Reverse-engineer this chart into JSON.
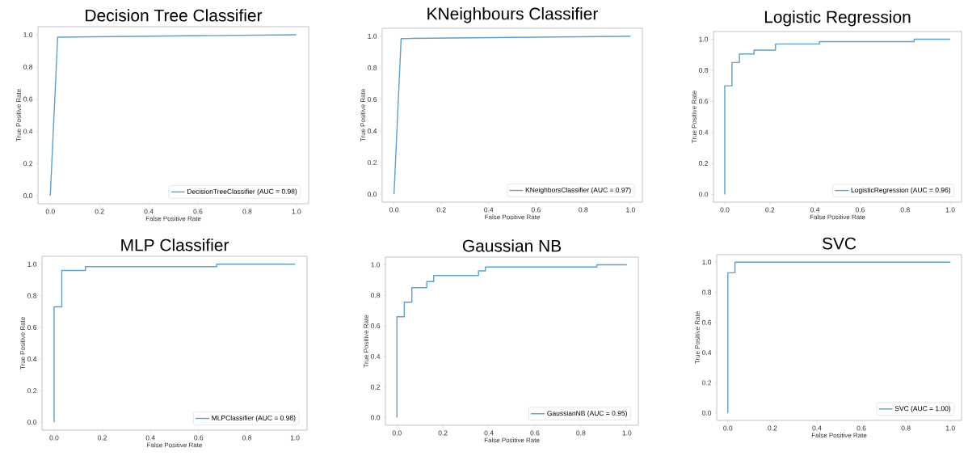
{
  "chart_data": [
    {
      "type": "line",
      "title": "Decision Tree Classifier",
      "xlabel": "False Positive Rate",
      "ylabel": "True Positive Rate",
      "xlim": [
        -0.05,
        1.05
      ],
      "ylim": [
        -0.05,
        1.05
      ],
      "xticks": [
        {
          "value": 0,
          "label": "0.0"
        },
        {
          "value": 0.2,
          "label": "0.2"
        },
        {
          "value": 0.4,
          "label": "0.4"
        },
        {
          "value": 0.6,
          "label": "0.6"
        },
        {
          "value": 0.8,
          "label": "0.8"
        },
        {
          "value": 1,
          "label": "1.0"
        }
      ],
      "yticks": [
        {
          "value": 0,
          "label": "0.0"
        },
        {
          "value": 0.2,
          "label": "0.2"
        },
        {
          "value": 0.4,
          "label": "0.4"
        },
        {
          "value": 0.6,
          "label": "0.6"
        },
        {
          "value": 0.8,
          "label": "0.8"
        },
        {
          "value": 1,
          "label": "1.0"
        }
      ],
      "legend": "bottom right",
      "series": [
        {
          "name": "DecisionTreeClassifier (AUC = 0.98)",
          "color": "#5f9fc8",
          "x": [
            0,
            0.03,
            1
          ],
          "values": [
            0,
            0.985,
            1
          ]
        }
      ]
    },
    {
      "type": "line",
      "title": "KNeighbours Classifier",
      "xlabel": "False Positive Rate",
      "ylabel": "True Positive Rate",
      "xlim": [
        -0.05,
        1.05
      ],
      "ylim": [
        -0.05,
        1.05
      ],
      "xticks": [
        {
          "value": 0,
          "label": "0.0"
        },
        {
          "value": 0.2,
          "label": "0.2"
        },
        {
          "value": 0.4,
          "label": "0.4"
        },
        {
          "value": 0.6,
          "label": "0.6"
        },
        {
          "value": 0.8,
          "label": "0.8"
        },
        {
          "value": 1,
          "label": "1.0"
        }
      ],
      "yticks": [
        {
          "value": 0,
          "label": "0.0"
        },
        {
          "value": 0.2,
          "label": "0.2"
        },
        {
          "value": 0.4,
          "label": "0.4"
        },
        {
          "value": 0.6,
          "label": "0.6"
        },
        {
          "value": 0.8,
          "label": "0.8"
        },
        {
          "value": 1,
          "label": "1.0"
        }
      ],
      "legend": "bottom right",
      "series": [
        {
          "name": "KNeighborsClassifier (AUC = 0.97)",
          "color": "#5f9fc8",
          "x": [
            0,
            0.03,
            1
          ],
          "values": [
            0,
            0.985,
            1
          ]
        }
      ]
    },
    {
      "type": "line",
      "title": "Logistic Regression",
      "xlabel": "False Positive Rate",
      "ylabel": "True Positive Rate",
      "xlim": [
        -0.05,
        1.05
      ],
      "ylim": [
        -0.05,
        1.05
      ],
      "xticks": [
        {
          "value": 0,
          "label": "0.0"
        },
        {
          "value": 0.2,
          "label": "0.2"
        },
        {
          "value": 0.4,
          "label": "0.4"
        },
        {
          "value": 0.6,
          "label": "0.6"
        },
        {
          "value": 0.8,
          "label": "0.8"
        },
        {
          "value": 1,
          "label": "1.0"
        }
      ],
      "yticks": [
        {
          "value": 0,
          "label": "0.0"
        },
        {
          "value": 0.2,
          "label": "0.2"
        },
        {
          "value": 0.4,
          "label": "0.4"
        },
        {
          "value": 0.6,
          "label": "0.6"
        },
        {
          "value": 0.8,
          "label": "0.8"
        },
        {
          "value": 1,
          "label": "1.0"
        }
      ],
      "legend": "bottom right",
      "series": [
        {
          "name": "LogisticRegression (AUC = 0.96)",
          "color": "#5f9fc8",
          "x": [
            0,
            0,
            0.032,
            0.032,
            0.065,
            0.065,
            0.13,
            0.13,
            0.225,
            0.225,
            0.42,
            0.42,
            0.84,
            0.84,
            1
          ],
          "values": [
            0,
            0.7,
            0.7,
            0.85,
            0.85,
            0.905,
            0.905,
            0.93,
            0.93,
            0.97,
            0.97,
            0.985,
            0.985,
            1,
            1
          ]
        }
      ]
    },
    {
      "type": "line",
      "title": "MLP Classifier",
      "xlabel": "False Positive Rate",
      "ylabel": "True Positive Rate",
      "xlim": [
        -0.05,
        1.05
      ],
      "ylim": [
        -0.05,
        1.05
      ],
      "xticks": [
        {
          "value": 0,
          "label": "0.0"
        },
        {
          "value": 0.2,
          "label": "0.2"
        },
        {
          "value": 0.4,
          "label": "0.4"
        },
        {
          "value": 0.6,
          "label": "0.6"
        },
        {
          "value": 0.8,
          "label": "0.8"
        },
        {
          "value": 1,
          "label": "1.0"
        }
      ],
      "yticks": [
        {
          "value": 0,
          "label": "0.0"
        },
        {
          "value": 0.2,
          "label": "0.2"
        },
        {
          "value": 0.4,
          "label": "0.4"
        },
        {
          "value": 0.6,
          "label": "0.6"
        },
        {
          "value": 0.8,
          "label": "0.8"
        },
        {
          "value": 1,
          "label": "1.0"
        }
      ],
      "legend": "bottom right",
      "series": [
        {
          "name": "MLPClassifier (AUC = 0.98)",
          "color": "#5f9fc8",
          "x": [
            0,
            0,
            0.032,
            0.032,
            0.13,
            0.13,
            0.675,
            0.675,
            1
          ],
          "values": [
            0,
            0.73,
            0.73,
            0.96,
            0.96,
            0.985,
            0.985,
            1,
            1
          ]
        }
      ]
    },
    {
      "type": "line",
      "title": "Gaussian NB",
      "xlabel": "False Positive Rate",
      "ylabel": "True Positive Rate",
      "xlim": [
        -0.05,
        1.05
      ],
      "ylim": [
        -0.05,
        1.05
      ],
      "xticks": [
        {
          "value": 0,
          "label": "0.0"
        },
        {
          "value": 0.2,
          "label": "0.2"
        },
        {
          "value": 0.4,
          "label": "0.4"
        },
        {
          "value": 0.6,
          "label": "0.6"
        },
        {
          "value": 0.8,
          "label": "0.8"
        },
        {
          "value": 1,
          "label": "1.0"
        }
      ],
      "yticks": [
        {
          "value": 0,
          "label": "0.0"
        },
        {
          "value": 0.2,
          "label": "0.2"
        },
        {
          "value": 0.4,
          "label": "0.4"
        },
        {
          "value": 0.6,
          "label": "0.6"
        },
        {
          "value": 0.8,
          "label": "0.8"
        },
        {
          "value": 1,
          "label": "1.0"
        }
      ],
      "legend": "bottom right",
      "series": [
        {
          "name": "GaussianNB (AUC = 0.95)",
          "color": "#5f9fc8",
          "x": [
            0,
            0,
            0.032,
            0.032,
            0.065,
            0.065,
            0.13,
            0.13,
            0.16,
            0.16,
            0.355,
            0.355,
            0.385,
            0.385,
            0.87,
            0.87,
            1
          ],
          "values": [
            0,
            0.66,
            0.66,
            0.755,
            0.755,
            0.85,
            0.85,
            0.89,
            0.89,
            0.93,
            0.93,
            0.96,
            0.96,
            0.985,
            0.985,
            1,
            1
          ]
        }
      ]
    },
    {
      "type": "line",
      "title": "SVC",
      "xlabel": "False Positive Rate",
      "ylabel": "True Positive Rate",
      "xlim": [
        -0.05,
        1.05
      ],
      "ylim": [
        -0.05,
        1.05
      ],
      "xticks": [
        {
          "value": 0,
          "label": "0.0"
        },
        {
          "value": 0.2,
          "label": "0.2"
        },
        {
          "value": 0.4,
          "label": "0.4"
        },
        {
          "value": 0.6,
          "label": "0.6"
        },
        {
          "value": 0.8,
          "label": "0.8"
        },
        {
          "value": 1,
          "label": "1.0"
        }
      ],
      "yticks": [
        {
          "value": 0,
          "label": "0.0"
        },
        {
          "value": 0.2,
          "label": "0.2"
        },
        {
          "value": 0.4,
          "label": "0.4"
        },
        {
          "value": 0.6,
          "label": "0.6"
        },
        {
          "value": 0.8,
          "label": "0.8"
        },
        {
          "value": 1,
          "label": "1.0"
        }
      ],
      "legend": "bottom right",
      "series": [
        {
          "name": "SVC (AUC = 1.00)",
          "color": "#5f9fc8",
          "x": [
            0,
            0,
            0.032,
            0.032,
            1
          ],
          "values": [
            0,
            0.93,
            0.93,
            1,
            1
          ]
        }
      ]
    }
  ]
}
